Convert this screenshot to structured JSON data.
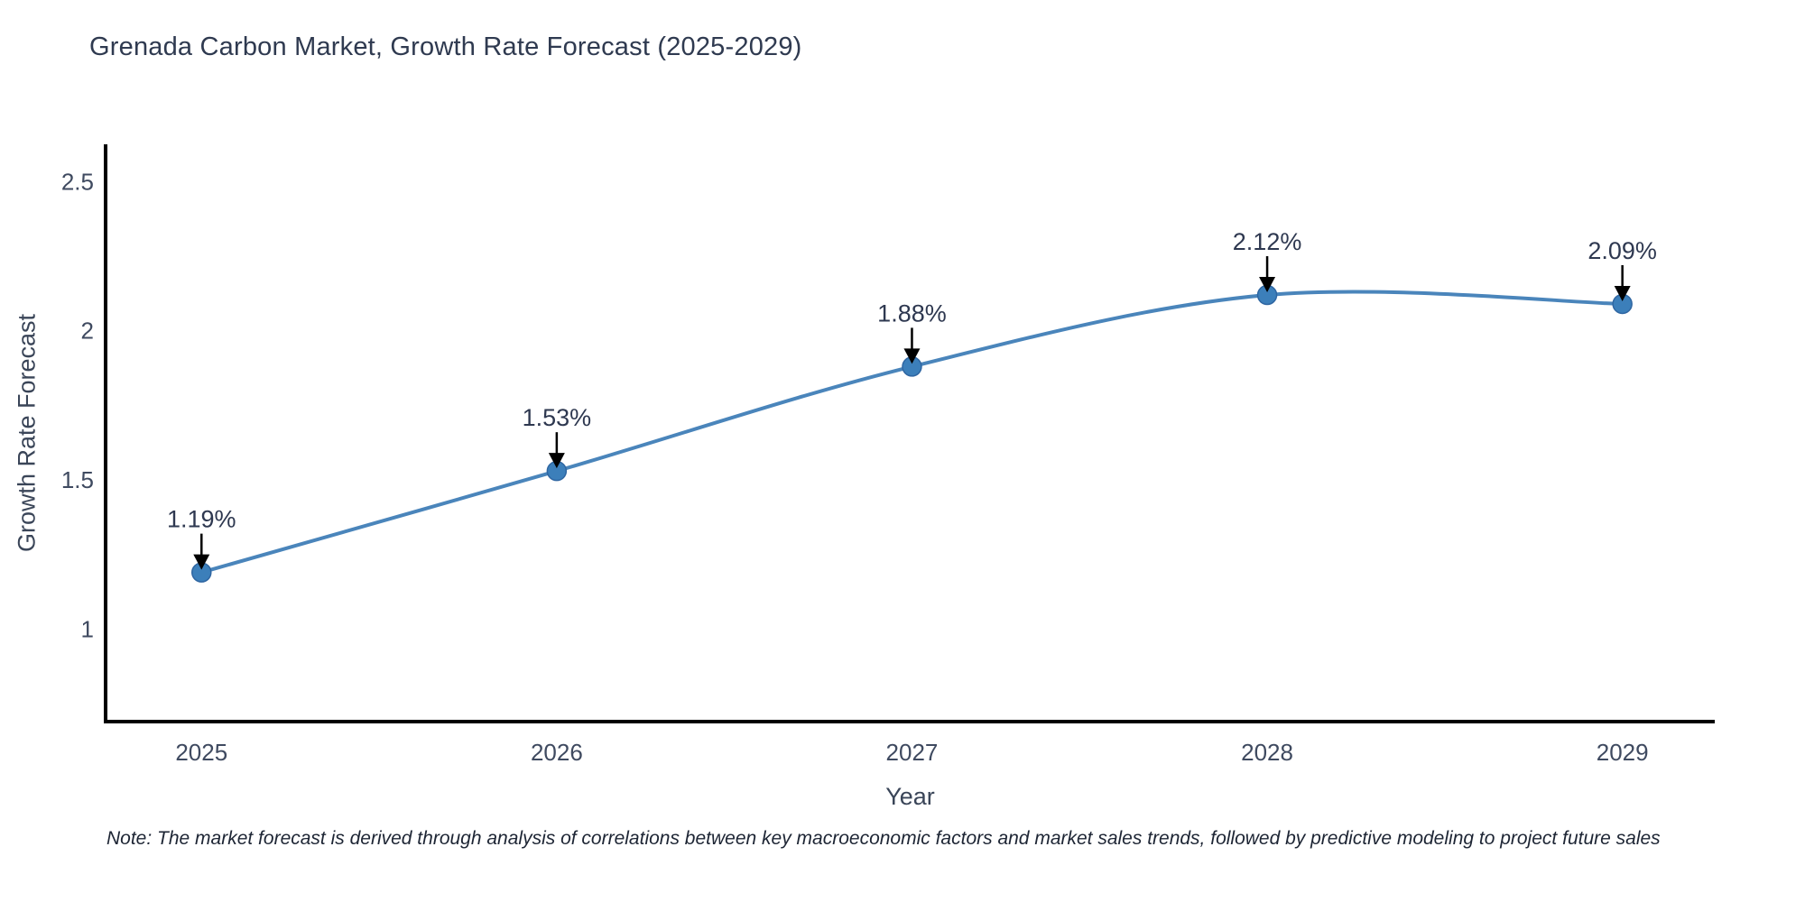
{
  "chart_data": {
    "type": "line",
    "title": "Grenada Carbon Market, Growth Rate Forecast (2025-2029)",
    "xlabel": "Year",
    "ylabel": "Growth Rate Forecast",
    "x": [
      2025,
      2026,
      2027,
      2028,
      2029
    ],
    "values": [
      1.19,
      1.53,
      1.88,
      2.12,
      2.09
    ],
    "point_labels": [
      "1.19%",
      "1.53%",
      "1.88%",
      "2.12%",
      "2.09%"
    ],
    "xticks": [
      "2025",
      "2026",
      "2027",
      "2028",
      "2029"
    ],
    "yticks": [
      "1",
      "1.5",
      "2",
      "2.5"
    ],
    "ytick_values": [
      1,
      1.5,
      2,
      2.5
    ],
    "xlim": [
      2024.73,
      2029.26
    ],
    "ylim": [
      0.69,
      2.625
    ],
    "grid": false,
    "legend": "none",
    "line_shape": "spline",
    "colors": {
      "line": "#4a85bb",
      "marker_fill": "#3c7fba",
      "marker_edge": "#2f66a2",
      "axis": "#000000",
      "arrow": "#000000",
      "title_text": "#2f3a50",
      "tick_text": "#3f4a60"
    }
  },
  "note": "Note: The market forecast is derived through analysis of correlations between key macroeconomic factors and market sales trends, followed by predictive modeling to project future sales"
}
